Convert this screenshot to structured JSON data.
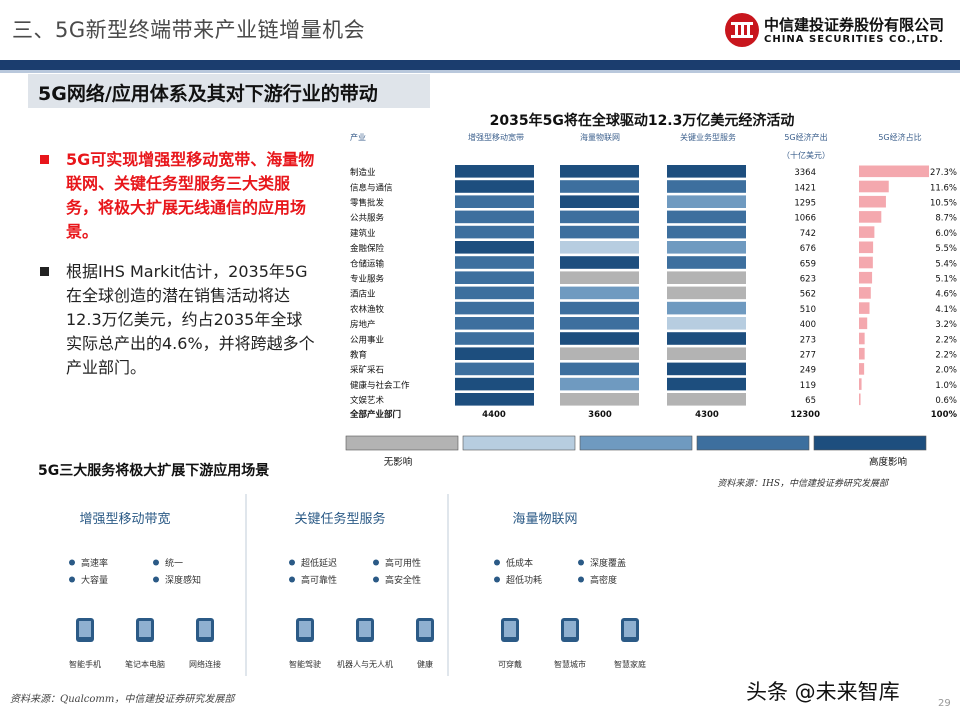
{
  "header": {
    "title": "三、5G新型终端带来产业链增量机会",
    "logo_cn": "中信建投证券股份有限公司",
    "logo_en": "CHINA SECURITIES CO.,LTD."
  },
  "section": {
    "title": "5G网络/应用体系及其对下游行业的带动"
  },
  "bullets": [
    {
      "text": "5G可实现增强型移动宽带、海量物联网、关键任务型服务三大类服务，将极大扩展无线通信的应用场景。"
    },
    {
      "text": "根据IHS Markit估计，2035年5G在全球创造的潜在销售活动将达12.3万亿美元，约占2035年全球实际总产出的4.6%，并将跨越多个产业部门。"
    }
  ],
  "chart_data": {
    "type": "table",
    "title": "2035年5G将在全球驱动12.3万亿美元经济活动",
    "columns": [
      "产业",
      "增强型移动宽带",
      "海量物联网",
      "关键业务型服务",
      "5G经济产出",
      "5G经济占比"
    ],
    "output_unit": "（十亿美元）",
    "rows": [
      {
        "industry": "制造业",
        "embb": 5,
        "miot": 5,
        "critical": 5,
        "output": "3364",
        "share": "27.3%",
        "share_value": 27.3
      },
      {
        "industry": "信息与通信",
        "embb": 5,
        "miot": 4,
        "critical": 4,
        "output": "1421",
        "share": "11.6%",
        "share_value": 11.6
      },
      {
        "industry": "零售批发",
        "embb": 4,
        "miot": 5,
        "critical": 3,
        "output": "1295",
        "share": "10.5%",
        "share_value": 10.5
      },
      {
        "industry": "公共服务",
        "embb": 4,
        "miot": 4,
        "critical": 4,
        "output": "1066",
        "share": "8.7%",
        "share_value": 8.7
      },
      {
        "industry": "建筑业",
        "embb": 4,
        "miot": 4,
        "critical": 4,
        "output": "742",
        "share": "6.0%",
        "share_value": 6.0
      },
      {
        "industry": "金融保险",
        "embb": 5,
        "miot": 2,
        "critical": 3,
        "output": "676",
        "share": "5.5%",
        "share_value": 5.5
      },
      {
        "industry": "仓储运输",
        "embb": 4,
        "miot": 5,
        "critical": 4,
        "output": "659",
        "share": "5.4%",
        "share_value": 5.4
      },
      {
        "industry": "专业服务",
        "embb": 4,
        "miot": 1,
        "critical": 1,
        "output": "623",
        "share": "5.1%",
        "share_value": 5.1
      },
      {
        "industry": "酒店业",
        "embb": 4,
        "miot": 3,
        "critical": 1,
        "output": "562",
        "share": "4.6%",
        "share_value": 4.6
      },
      {
        "industry": "农林渔牧",
        "embb": 4,
        "miot": 4,
        "critical": 3,
        "output": "510",
        "share": "4.1%",
        "share_value": 4.1
      },
      {
        "industry": "房地产",
        "embb": 4,
        "miot": 4,
        "critical": 2,
        "output": "400",
        "share": "3.2%",
        "share_value": 3.2
      },
      {
        "industry": "公用事业",
        "embb": 4,
        "miot": 5,
        "critical": 5,
        "output": "273",
        "share": "2.2%",
        "share_value": 2.2
      },
      {
        "industry": "教育",
        "embb": 5,
        "miot": 1,
        "critical": 1,
        "output": "277",
        "share": "2.2%",
        "share_value": 2.2
      },
      {
        "industry": "采矿采石",
        "embb": 4,
        "miot": 4,
        "critical": 5,
        "output": "249",
        "share": "2.0%",
        "share_value": 2.0
      },
      {
        "industry": "健康与社会工作",
        "embb": 5,
        "miot": 3,
        "critical": 5,
        "output": "119",
        "share": "1.0%",
        "share_value": 1.0
      },
      {
        "industry": "文娱艺术",
        "embb": 5,
        "miot": 1,
        "critical": 1,
        "output": "65",
        "share": "0.6%",
        "share_value": 0.6
      }
    ],
    "total": {
      "label": "全部产业部门",
      "embb": "4400",
      "miot": "3600",
      "critical": "4300",
      "output": "12300",
      "share": "100%"
    },
    "legend": {
      "levels": 5,
      "low_label": "无影响",
      "high_label": "高度影响"
    },
    "level_colors": [
      "#b3b3b3",
      "#b7cde0",
      "#6f9ac0",
      "#3d6f9e",
      "#1d4e7e"
    ],
    "share_bar_color": "#f4a8ae",
    "source": "资料来源：IHS，中信建投证券研究发展部"
  },
  "services": {
    "title": "5G三大服务将极大扩展下游应用场景",
    "groups": [
      {
        "name": "增强型移动带宽",
        "features": [
          "高速率",
          "统一",
          "大容量",
          "深度感知"
        ],
        "apps": [
          "智能手机",
          "笔记本电脑",
          "网络连接"
        ]
      },
      {
        "name": "关键任务型服务",
        "features": [
          "超低延迟",
          "高可用性",
          "高可靠性",
          "高安全性"
        ],
        "apps": [
          "智能驾驶",
          "机器人与无人机",
          "健康"
        ]
      },
      {
        "name": "海量物联网",
        "features": [
          "低成本",
          "深度覆盖",
          "超低功耗",
          "高密度"
        ],
        "apps": [
          "可穿戴",
          "智慧城市",
          "智慧家庭"
        ]
      }
    ]
  },
  "footer": {
    "source": "资料来源：Qualcomm，中信建投证券研究发展部",
    "page": "29",
    "watermark": "头条 @未来智库"
  },
  "colors": {
    "brand_navy": "#1b3d6e",
    "accent_red": "#e8161b",
    "logo_red": "#c8161d"
  }
}
